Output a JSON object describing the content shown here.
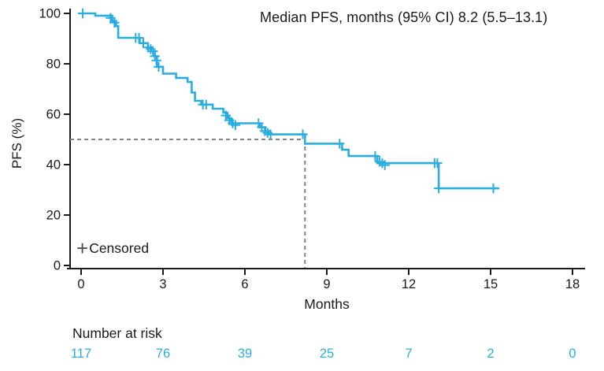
{
  "colors": {
    "curve": "#29ade0",
    "risk_numbers": "#29ade0",
    "axis": "#1a1a1a",
    "text": "#1a1a1a",
    "median_dash": "#828282",
    "legend_plus": "#4d4d4d",
    "background": "#ffffff"
  },
  "chart_data": {
    "type": "line",
    "subtype": "kaplan-meier-step",
    "title": "Median PFS, months (95% CI) 8.2 (5.5–13.1)",
    "xlabel": "Months",
    "ylabel": "PFS (%)",
    "xlim": [
      0,
      18
    ],
    "ylim": [
      0,
      100
    ],
    "x_ticks": [
      0,
      3,
      6,
      9,
      12,
      15,
      18
    ],
    "y_ticks": [
      0,
      20,
      40,
      60,
      80,
      100
    ],
    "grid": false,
    "legend": {
      "symbol": "+",
      "label": "Censored",
      "position": "inside-bottom-left"
    },
    "median": {
      "time_months": 8.2,
      "survival_pct": 50,
      "ci_low": 5.5,
      "ci_high": 13.1
    },
    "series": [
      {
        "name": "PFS",
        "start": [
          0,
          100
        ],
        "curve_end_time": 15.32,
        "steps": [
          [
            0.52,
            99.1
          ],
          [
            1.14,
            97.0
          ],
          [
            1.28,
            95.0
          ],
          [
            1.36,
            90.3
          ],
          [
            2.15,
            88.2
          ],
          [
            2.45,
            86.5
          ],
          [
            2.57,
            85.0
          ],
          [
            2.7,
            83.0
          ],
          [
            2.78,
            78.8
          ],
          [
            3.0,
            76.1
          ],
          [
            3.48,
            74.4
          ],
          [
            3.9,
            72.8
          ],
          [
            4.05,
            68.6
          ],
          [
            4.17,
            65.3
          ],
          [
            4.4,
            63.8
          ],
          [
            4.82,
            62.2
          ],
          [
            5.21,
            60.6
          ],
          [
            5.36,
            58.4
          ],
          [
            5.5,
            56.4
          ],
          [
            6.55,
            54.8
          ],
          [
            6.74,
            53.3
          ],
          [
            6.88,
            52.0
          ],
          [
            8.2,
            48.3
          ],
          [
            9.56,
            45.9
          ],
          [
            9.8,
            43.4
          ],
          [
            10.85,
            40.6
          ],
          [
            13.1,
            30.6
          ]
        ],
        "censor_marks": [
          [
            0.06,
            100
          ],
          [
            1.08,
            98.2
          ],
          [
            1.22,
            96.3
          ],
          [
            2.0,
            90.3
          ],
          [
            2.12,
            90.3
          ],
          [
            2.28,
            88.2
          ],
          [
            2.45,
            86.5
          ],
          [
            2.55,
            85.8
          ],
          [
            2.63,
            85.0
          ],
          [
            2.7,
            83.0
          ],
          [
            2.76,
            81.3
          ],
          [
            2.84,
            78.8
          ],
          [
            4.46,
            63.8
          ],
          [
            4.58,
            63.8
          ],
          [
            5.3,
            59.5
          ],
          [
            5.43,
            57.6
          ],
          [
            5.55,
            56.4
          ],
          [
            5.65,
            55.7
          ],
          [
            6.5,
            56.4
          ],
          [
            6.62,
            54.8
          ],
          [
            6.73,
            53.3
          ],
          [
            6.83,
            52.6
          ],
          [
            6.94,
            52.0
          ],
          [
            8.12,
            52.0
          ],
          [
            9.47,
            48.3
          ],
          [
            10.77,
            43.4
          ],
          [
            10.93,
            41.2
          ],
          [
            11.03,
            40.6
          ],
          [
            11.13,
            39.8
          ],
          [
            12.95,
            40.6
          ],
          [
            13.05,
            40.6
          ],
          [
            13.1,
            30.6
          ],
          [
            15.1,
            30.6
          ]
        ]
      }
    ],
    "risk_table": {
      "label": "Number at risk",
      "times": [
        0,
        3,
        6,
        9,
        12,
        15,
        18
      ],
      "counts": [
        117,
        76,
        39,
        25,
        7,
        2,
        0
      ]
    }
  }
}
